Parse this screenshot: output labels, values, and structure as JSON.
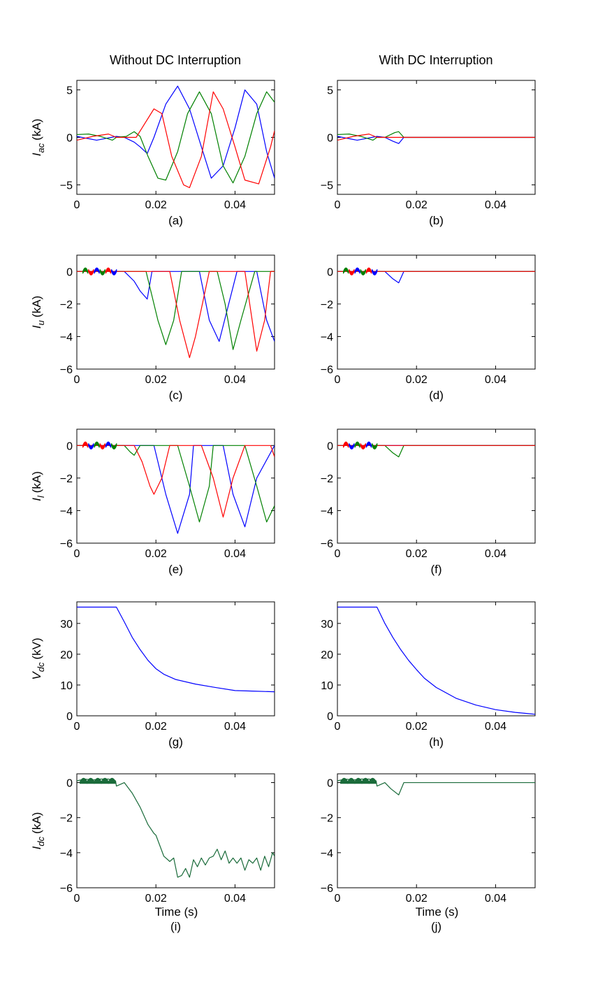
{
  "figure": {
    "column_titles": [
      "Without DC Interruption",
      "With DC Interruption"
    ]
  },
  "colors": {
    "phase_a": "#0000ff",
    "phase_b": "#008000",
    "phase_c": "#ff0000",
    "vdc": "#0000ff",
    "idc": "#1a6b3a"
  },
  "chart_data": [
    {
      "id": "a",
      "type": "line",
      "caption": "(a)",
      "ylabel": {
        "sym": "I",
        "sub": "ac",
        "unit": "(kA)"
      },
      "xlim": [
        0,
        0.05
      ],
      "ylim": [
        -6,
        6
      ],
      "xticks": [
        "0",
        "0.02",
        "0.04"
      ],
      "yticks": [
        "-5",
        "0",
        "5"
      ],
      "xlabel": "",
      "interruption": false,
      "signal": "iac",
      "series": [
        {
          "color": "#0000ff",
          "x": [
            0,
            0.005,
            0.01,
            0.012,
            0.0145,
            0.016,
            0.0178,
            0.0195,
            0.0225,
            0.0255,
            0.0285,
            0.0315,
            0.034,
            0.037,
            0.04,
            0.0425,
            0.0455,
            0.048,
            0.05
          ],
          "y": [
            0.1,
            -0.3,
            0.1,
            0,
            -0.5,
            -1,
            -1.7,
            0,
            3.5,
            5.4,
            3,
            -1,
            -4.3,
            -3,
            1,
            5,
            3.5,
            -1.5,
            -4.3
          ]
        },
        {
          "color": "#008000",
          "x": [
            0,
            0.003,
            0.006,
            0.009,
            0.01,
            0.0125,
            0.0145,
            0.016,
            0.018,
            0.0205,
            0.0225,
            0.0255,
            0.028,
            0.031,
            0.034,
            0.037,
            0.0395,
            0.0425,
            0.0455,
            0.048,
            0.05
          ],
          "y": [
            0.3,
            0.35,
            0.1,
            -0.3,
            0,
            0.1,
            0.6,
            0.1,
            -2,
            -4.3,
            -4.5,
            -1.5,
            2.5,
            4.8,
            2.5,
            -3,
            -4.8,
            -2,
            2.5,
            4.8,
            3.7
          ]
        },
        {
          "color": "#ff0000",
          "x": [
            0,
            0.004,
            0.008,
            0.01,
            0.0125,
            0.015,
            0.0165,
            0.0195,
            0.0215,
            0.024,
            0.027,
            0.0285,
            0.0315,
            0.0345,
            0.037,
            0.04,
            0.0425,
            0.046,
            0.049,
            0.05
          ],
          "y": [
            -0.3,
            0.1,
            0.35,
            0,
            0,
            0,
            1,
            3,
            2.5,
            -2,
            -5,
            -5.3,
            -2,
            4.8,
            3,
            -1,
            -4.5,
            -4.9,
            -1,
            0.7
          ]
        }
      ]
    },
    {
      "id": "b",
      "type": "line",
      "caption": "(b)",
      "ylabel": null,
      "xlim": [
        0,
        0.05
      ],
      "ylim": [
        -6,
        6
      ],
      "xticks": [
        "0",
        "0.02",
        "0.04"
      ],
      "yticks": [
        "-5",
        "0",
        "5"
      ],
      "xlabel": "",
      "interruption": true,
      "signal": "iac",
      "series": [
        {
          "color": "#0000ff",
          "x": [
            0,
            0.005,
            0.01,
            0.012,
            0.014,
            0.0155,
            0.0168,
            0.05
          ],
          "y": [
            0.1,
            -0.3,
            0.1,
            0,
            -0.4,
            -0.65,
            0,
            0
          ]
        },
        {
          "color": "#008000",
          "x": [
            0,
            0.003,
            0.006,
            0.009,
            0.01,
            0.012,
            0.0145,
            0.0155,
            0.0168,
            0.05
          ],
          "y": [
            0.3,
            0.35,
            0.1,
            -0.3,
            0,
            0,
            0.5,
            0.6,
            0,
            0
          ]
        },
        {
          "color": "#ff0000",
          "x": [
            0,
            0.004,
            0.008,
            0.01,
            0.05
          ],
          "y": [
            -0.3,
            0.1,
            0.35,
            0,
            0
          ]
        }
      ]
    },
    {
      "id": "c",
      "type": "line",
      "caption": "(c)",
      "ylabel": {
        "sym": "I",
        "sub": "u",
        "unit": "(kA)"
      },
      "xlim": [
        0,
        0.05
      ],
      "ylim": [
        -6,
        1
      ],
      "xticks": [
        "0",
        "0.02",
        "0.04"
      ],
      "yticks": [
        "-6",
        "-4",
        "-2",
        "0"
      ],
      "xlabel": "",
      "interruption": false,
      "signal": "iu",
      "series": [
        {
          "color": "#0000ff",
          "x": [
            0,
            0.012,
            0.0145,
            0.016,
            0.0178,
            0.019,
            0.0215,
            0.0245,
            0.029,
            0.031,
            0.0335,
            0.036,
            0.0405,
            0.0425,
            0.0455,
            0.048,
            0.05
          ],
          "y": [
            0,
            0,
            -0.6,
            -1.2,
            -1.7,
            0,
            0,
            0,
            0,
            0,
            -3,
            -4.3,
            0,
            0,
            0,
            -3,
            -4.3
          ]
        },
        {
          "color": "#008000",
          "x": [
            0,
            0.013,
            0.015,
            0.0175,
            0.0205,
            0.0225,
            0.0245,
            0.0265,
            0.0305,
            0.0325,
            0.0355,
            0.0375,
            0.0395,
            0.0415,
            0.045,
            0.047,
            0.05
          ],
          "y": [
            0,
            0,
            0,
            0,
            -3,
            -4.5,
            -3,
            0,
            0,
            0,
            0,
            -2,
            -4.8,
            -3,
            0,
            0,
            0
          ]
        },
        {
          "color": "#ff0000",
          "x": [
            0,
            0.0215,
            0.0235,
            0.026,
            0.0285,
            0.03,
            0.0335,
            0.034,
            0.0365,
            0.0395,
            0.0425,
            0.0455,
            0.0475,
            0.049,
            0.05
          ],
          "y": [
            0,
            0,
            0,
            -3,
            -5.3,
            -4,
            0,
            0,
            0,
            0,
            0,
            -4.9,
            -3,
            0,
            0
          ]
        }
      ]
    },
    {
      "id": "d",
      "type": "line",
      "caption": "(d)",
      "ylabel": null,
      "xlim": [
        0,
        0.05
      ],
      "ylim": [
        -6,
        1
      ],
      "xticks": [
        "0",
        "0.02",
        "0.04"
      ],
      "yticks": [
        "-6",
        "-4",
        "-2",
        "0"
      ],
      "xlabel": "",
      "interruption": true,
      "signal": "iu",
      "series": [
        {
          "color": "#0000ff",
          "x": [
            0,
            0.012,
            0.014,
            0.0155,
            0.0168,
            0.05
          ],
          "y": [
            0,
            0,
            -0.45,
            -0.7,
            0,
            0
          ]
        },
        {
          "color": "#008000",
          "x": [
            0,
            0.05
          ],
          "y": [
            0,
            0
          ]
        },
        {
          "color": "#ff0000",
          "x": [
            0,
            0.05
          ],
          "y": [
            0,
            0
          ]
        }
      ]
    },
    {
      "id": "e",
      "type": "line",
      "caption": "(e)",
      "ylabel": {
        "sym": "I",
        "sub": "l",
        "unit": "(kA)"
      },
      "xlim": [
        0,
        0.05
      ],
      "ylim": [
        -6,
        1
      ],
      "xticks": [
        "0",
        "0.02",
        "0.04"
      ],
      "yticks": [
        "-6",
        "-4",
        "-2",
        "0"
      ],
      "xlabel": "",
      "interruption": false,
      "signal": "il",
      "series": [
        {
          "color": "#0000ff",
          "x": [
            0,
            0.0195,
            0.0225,
            0.0255,
            0.0285,
            0.0295,
            0.037,
            0.0395,
            0.0425,
            0.0455,
            0.05
          ],
          "y": [
            0,
            0,
            -3,
            -5.4,
            -3,
            0,
            0,
            -3,
            -5,
            -2,
            0
          ]
        },
        {
          "color": "#008000",
          "x": [
            0,
            0.012,
            0.0135,
            0.0145,
            0.016,
            0.0255,
            0.0285,
            0.031,
            0.0335,
            0.0345,
            0.0425,
            0.0455,
            0.048,
            0.05
          ],
          "y": [
            0,
            0,
            -0.4,
            -0.6,
            0,
            0,
            -2.5,
            -4.7,
            -2.5,
            0,
            0,
            -2.5,
            -4.7,
            -3.7
          ]
        },
        {
          "color": "#ff0000",
          "x": [
            0,
            0.0145,
            0.0165,
            0.0185,
            0.0195,
            0.0215,
            0.0235,
            0.0315,
            0.0345,
            0.037,
            0.0395,
            0.0425,
            0.049,
            0.05
          ],
          "y": [
            0,
            0,
            -1,
            -2.5,
            -3,
            -2,
            0,
            0,
            -2,
            -4.4,
            -2,
            0,
            0,
            -0.7
          ]
        }
      ]
    },
    {
      "id": "f",
      "type": "line",
      "caption": "(f)",
      "ylabel": null,
      "xlim": [
        0,
        0.05
      ],
      "ylim": [
        -6,
        1
      ],
      "xticks": [
        "0",
        "0.02",
        "0.04"
      ],
      "yticks": [
        "-6",
        "-4",
        "-2",
        "0"
      ],
      "xlabel": "",
      "interruption": true,
      "signal": "il",
      "series": [
        {
          "color": "#0000ff",
          "x": [
            0,
            0.05
          ],
          "y": [
            0,
            0
          ]
        },
        {
          "color": "#008000",
          "x": [
            0,
            0.012,
            0.014,
            0.0155,
            0.0168,
            0.05
          ],
          "y": [
            0,
            0,
            -0.45,
            -0.7,
            0,
            0
          ]
        },
        {
          "color": "#ff0000",
          "x": [
            0,
            0.05
          ],
          "y": [
            0,
            0
          ]
        }
      ]
    },
    {
      "id": "g",
      "type": "line",
      "caption": "(g)",
      "ylabel": {
        "sym": "V",
        "sub": "dc",
        "unit": "(kV)"
      },
      "xlim": [
        0,
        0.05
      ],
      "ylim": [
        0,
        37
      ],
      "xticks": [
        "0",
        "0.02",
        "0.04"
      ],
      "yticks": [
        "0",
        "10",
        "20",
        "30"
      ],
      "xlabel": "",
      "interruption": false,
      "signal": "vdc",
      "series": [
        {
          "color": "#0000ff",
          "x": [
            0,
            0.01,
            0.012,
            0.014,
            0.016,
            0.018,
            0.02,
            0.022,
            0.025,
            0.03,
            0.035,
            0.04,
            0.045,
            0.05
          ],
          "y": [
            35.3,
            35.3,
            30.5,
            25.5,
            21.5,
            18,
            15.3,
            13.5,
            11.8,
            10.3,
            9.2,
            8.2,
            8,
            7.8
          ]
        }
      ]
    },
    {
      "id": "h",
      "type": "line",
      "caption": "(h)",
      "ylabel": null,
      "xlim": [
        0,
        0.05
      ],
      "ylim": [
        0,
        37
      ],
      "xticks": [
        "0",
        "0.02",
        "0.04"
      ],
      "yticks": [
        "0",
        "10",
        "20",
        "30"
      ],
      "xlabel": "",
      "interruption": true,
      "signal": "vdc",
      "series": [
        {
          "color": "#0000ff",
          "x": [
            0,
            0.01,
            0.012,
            0.014,
            0.016,
            0.018,
            0.02,
            0.022,
            0.025,
            0.03,
            0.035,
            0.04,
            0.045,
            0.05
          ],
          "y": [
            35.3,
            35.3,
            30,
            25.5,
            21.5,
            18,
            15,
            12.2,
            9.2,
            5.7,
            3.5,
            2,
            1.1,
            0.5
          ]
        }
      ]
    },
    {
      "id": "i",
      "type": "line",
      "caption": "(i)",
      "ylabel": {
        "sym": "I",
        "sub": "dc",
        "unit": "(kA)"
      },
      "xlim": [
        0,
        0.05
      ],
      "ylim": [
        -6,
        0.5
      ],
      "xticks": [
        "0",
        "0.02",
        "0.04"
      ],
      "yticks": [
        "-6",
        "-4",
        "-2",
        "0"
      ],
      "xlabel": "Time (s)",
      "interruption": false,
      "signal": "idc",
      "series": [
        {
          "color": "#1a6b3a",
          "x": [
            0,
            0.002,
            0.004,
            0.006,
            0.008,
            0.0098,
            0.01,
            0.012,
            0.014,
            0.016,
            0.018,
            0.0195,
            0.02,
            0.022,
            0.0235,
            0.0245,
            0.0255,
            0.0265,
            0.0275,
            0.0285,
            0.0295,
            0.0305,
            0.0315,
            0.0325,
            0.0335,
            0.0345,
            0.0355,
            0.0365,
            0.0375,
            0.0385,
            0.0395,
            0.0405,
            0.0415,
            0.0425,
            0.0435,
            0.0445,
            0.0455,
            0.0465,
            0.0475,
            0.0485,
            0.0495,
            0.05
          ],
          "y": [
            0.1,
            0.2,
            0.15,
            0.2,
            0.2,
            0.1,
            -0.2,
            0,
            -0.6,
            -1.4,
            -2.4,
            -2.9,
            -3,
            -4.2,
            -4.5,
            -4.3,
            -5.4,
            -5.3,
            -4.9,
            -5.4,
            -4.4,
            -4.8,
            -4.3,
            -4.7,
            -4.3,
            -4.2,
            -3.8,
            -4.4,
            -3.9,
            -4.6,
            -4.3,
            -4.6,
            -4.3,
            -5,
            -4.4,
            -4.6,
            -4.3,
            -5,
            -4.2,
            -4.8,
            -4,
            -4.2
          ]
        }
      ]
    },
    {
      "id": "j",
      "type": "line",
      "caption": "(j)",
      "ylabel": null,
      "xlim": [
        0,
        0.05
      ],
      "ylim": [
        -6,
        0.5
      ],
      "xticks": [
        "0",
        "0.02",
        "0.04"
      ],
      "yticks": [
        "-6",
        "-4",
        "-2",
        "0"
      ],
      "xlabel": "Time (s)",
      "interruption": true,
      "signal": "idc",
      "series": [
        {
          "color": "#1a6b3a",
          "x": [
            0,
            0.002,
            0.004,
            0.006,
            0.008,
            0.0098,
            0.01,
            0.012,
            0.0135,
            0.0155,
            0.0168,
            0.05
          ],
          "y": [
            0.1,
            0.2,
            0.15,
            0.2,
            0.2,
            0.1,
            -0.2,
            0,
            -0.35,
            -0.7,
            0,
            0
          ]
        }
      ]
    }
  ]
}
